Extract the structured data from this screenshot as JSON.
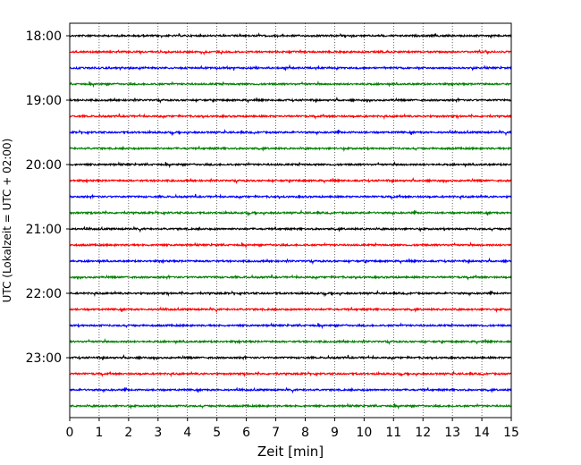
{
  "chart_data": {
    "type": "line",
    "title": "",
    "xlabel": "Zeit  [min]",
    "ylabel": "UTC (Lokalzeit = UTC + 02:00)",
    "xlim": [
      0,
      15
    ],
    "x_ticks": [
      0,
      1,
      2,
      3,
      4,
      5,
      6,
      7,
      8,
      9,
      10,
      11,
      12,
      13,
      14,
      15
    ],
    "x_tick_labels": [
      "0",
      "1",
      "2",
      "3",
      "4",
      "5",
      "6",
      "7",
      "8",
      "9",
      "10",
      "11",
      "12",
      "13",
      "14",
      "15"
    ],
    "y_tick_labels": [
      "18:00",
      "19:00",
      "20:00",
      "21:00",
      "22:00",
      "23:00"
    ],
    "grid": "vertical dotted",
    "trace_interval_minutes": 15,
    "start_time": "18:00",
    "color_cycle": [
      "#000000",
      "#ff0000",
      "#0000ff",
      "#008000"
    ],
    "traces": [
      {
        "start": "18:00",
        "color": "#000000"
      },
      {
        "start": "18:15",
        "color": "#ff0000"
      },
      {
        "start": "18:30",
        "color": "#0000ff"
      },
      {
        "start": "18:45",
        "color": "#008000"
      },
      {
        "start": "19:00",
        "color": "#000000"
      },
      {
        "start": "19:15",
        "color": "#ff0000"
      },
      {
        "start": "19:30",
        "color": "#0000ff"
      },
      {
        "start": "19:45",
        "color": "#008000"
      },
      {
        "start": "20:00",
        "color": "#000000"
      },
      {
        "start": "20:15",
        "color": "#ff0000"
      },
      {
        "start": "20:30",
        "color": "#0000ff"
      },
      {
        "start": "20:45",
        "color": "#008000"
      },
      {
        "start": "21:00",
        "color": "#000000"
      },
      {
        "start": "21:15",
        "color": "#ff0000"
      },
      {
        "start": "21:30",
        "color": "#0000ff"
      },
      {
        "start": "21:45",
        "color": "#008000"
      },
      {
        "start": "22:00",
        "color": "#000000"
      },
      {
        "start": "22:15",
        "color": "#ff0000"
      },
      {
        "start": "22:30",
        "color": "#0000ff"
      },
      {
        "start": "22:45",
        "color": "#008000"
      },
      {
        "start": "23:00",
        "color": "#000000"
      },
      {
        "start": "23:15",
        "color": "#ff0000"
      },
      {
        "start": "23:30",
        "color": "#0000ff"
      },
      {
        "start": "23:45",
        "color": "#008000"
      }
    ]
  }
}
